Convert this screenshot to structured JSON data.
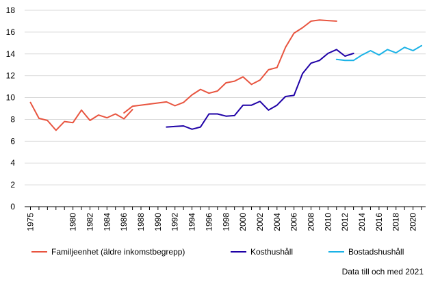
{
  "chart_data": {
    "type": "line",
    "title": "",
    "xlabel": "",
    "ylabel": "",
    "ylim": [
      0,
      18
    ],
    "xlim": [
      1974.5,
      2021.5
    ],
    "yticks": [
      0,
      2,
      4,
      6,
      8,
      10,
      12,
      14,
      16,
      18
    ],
    "xticks": [
      1975,
      1980,
      1982,
      1984,
      1986,
      1988,
      1990,
      1992,
      1994,
      1996,
      1998,
      2000,
      2002,
      2004,
      2006,
      2008,
      2010,
      2012,
      2014,
      2016,
      2018,
      2020
    ],
    "grid": "horizontal",
    "legend_position": "bottom",
    "series": [
      {
        "name": "Familjeenhet (äldre inkomstbegrepp)",
        "color": "#e8543f",
        "segments": [
          [
            [
              1975,
              9.55
            ],
            [
              1976,
              8.1
            ],
            [
              1977,
              7.9
            ],
            [
              1978,
              7.0
            ],
            [
              1979,
              7.8
            ],
            [
              1980,
              7.7
            ],
            [
              1981,
              8.85
            ],
            [
              1982,
              7.9
            ],
            [
              1983,
              8.4
            ],
            [
              1984,
              8.15
            ],
            [
              1985,
              8.5
            ],
            [
              1986,
              8.05
            ],
            [
              1987,
              8.9
            ]
          ],
          [
            [
              1986,
              8.6
            ],
            [
              1987,
              9.2
            ],
            [
              1991,
              9.6
            ],
            [
              1992,
              9.25
            ],
            [
              1993,
              9.55
            ],
            [
              1994,
              10.25
            ],
            [
              1995,
              10.75
            ],
            [
              1996,
              10.4
            ],
            [
              1997,
              10.6
            ],
            [
              1998,
              11.35
            ],
            [
              1999,
              11.5
            ],
            [
              2000,
              11.9
            ],
            [
              2001,
              11.2
            ],
            [
              2002,
              11.6
            ],
            [
              2003,
              12.55
            ],
            [
              2004,
              12.75
            ],
            [
              2005,
              14.6
            ],
            [
              2006,
              15.9
            ],
            [
              2007,
              16.4
            ],
            [
              2008,
              17.0
            ],
            [
              2009,
              17.1
            ],
            [
              2010,
              17.05
            ],
            [
              2011,
              17.0
            ]
          ]
        ]
      },
      {
        "name": "Kosthushåll",
        "color": "#1e00a6",
        "segments": [
          [
            [
              1991,
              7.3
            ],
            [
              1993,
              7.4
            ],
            [
              1994,
              7.1
            ],
            [
              1995,
              7.3
            ],
            [
              1996,
              8.5
            ],
            [
              1997,
              8.5
            ],
            [
              1998,
              8.3
            ],
            [
              1999,
              8.35
            ],
            [
              2000,
              9.3
            ],
            [
              2001,
              9.3
            ],
            [
              2002,
              9.65
            ],
            [
              2003,
              8.85
            ],
            [
              2004,
              9.3
            ],
            [
              2005,
              10.1
            ],
            [
              2006,
              10.2
            ],
            [
              2007,
              12.2
            ],
            [
              2008,
              13.15
            ],
            [
              2009,
              13.4
            ],
            [
              2010,
              14.05
            ],
            [
              2011,
              14.4
            ],
            [
              2012,
              13.8
            ],
            [
              2013,
              14.05
            ]
          ]
        ]
      },
      {
        "name": "Bostadshushåll",
        "color": "#1ab2e6",
        "segments": [
          [
            [
              2011,
              13.5
            ],
            [
              2012,
              13.4
            ],
            [
              2013,
              13.4
            ],
            [
              2014,
              13.9
            ],
            [
              2015,
              14.3
            ],
            [
              2016,
              13.9
            ],
            [
              2017,
              14.4
            ],
            [
              2018,
              14.1
            ],
            [
              2019,
              14.6
            ],
            [
              2020,
              14.3
            ],
            [
              2021,
              14.75
            ]
          ]
        ]
      }
    ]
  },
  "legend": {
    "items": [
      {
        "label": "Familjeenhet (äldre inkomstbegrepp)"
      },
      {
        "label": "Kosthushåll"
      },
      {
        "label": "Bostadshushåll"
      }
    ]
  },
  "note": "Data till och med 2021"
}
